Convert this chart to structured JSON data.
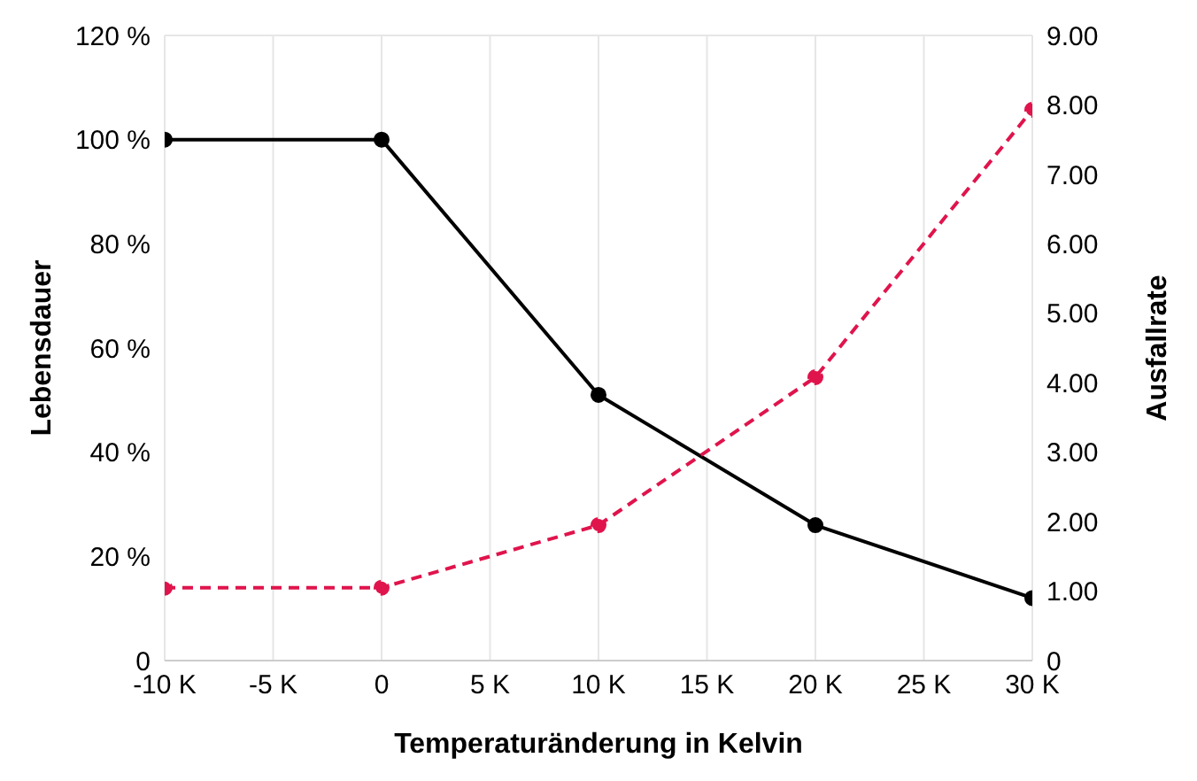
{
  "chart_data": {
    "type": "line",
    "xlabel": "Temperaturänderung in Kelvin",
    "ylabel": "Lebensdauer",
    "y2label": "Ausfallrate",
    "x": [
      -10,
      0,
      10,
      20,
      30
    ],
    "series": [
      {
        "color": "#000000",
        "values": [
          100,
          100,
          51,
          26,
          12
        ],
        "line_style": "solid"
      },
      {
        "color": "#e0144c",
        "values": [
          1.05,
          1.05,
          1.95,
          4.08,
          7.93
        ],
        "axis": "y2",
        "line_style": "dashed"
      }
    ],
    "xlim": [
      -10,
      30
    ],
    "xticks": [
      {
        "value": -10,
        "label": "-10 K"
      },
      {
        "value": -5,
        "label": "-5 K"
      },
      0,
      {
        "value": 5,
        "label": "5 K"
      },
      {
        "value": 10,
        "label": "10 K"
      },
      {
        "value": 15,
        "label": "15 K"
      },
      {
        "value": 20,
        "label": "20 K"
      },
      {
        "value": 25,
        "label": "25 K"
      },
      {
        "value": 30,
        "label": "30 K"
      }
    ],
    "ylim": [
      0,
      120
    ],
    "yticks": [
      0,
      {
        "value": 20,
        "label": "20 %"
      },
      {
        "value": 40,
        "label": "40 %"
      },
      {
        "value": 60,
        "label": "60 %"
      },
      {
        "value": 80,
        "label": "80 %"
      },
      {
        "value": 100,
        "label": "100 %"
      },
      {
        "value": 120,
        "label": "120 %"
      }
    ],
    "y2lim": [
      0,
      9
    ],
    "y2ticks": [
      0,
      {
        "value": 1,
        "label": "1.00"
      },
      {
        "value": 2,
        "label": "2.00"
      },
      {
        "value": 3,
        "label": "3.00"
      },
      {
        "value": 4,
        "label": "4.00"
      },
      {
        "value": 5,
        "label": "5.00"
      },
      {
        "value": 6,
        "label": "6.00"
      },
      {
        "value": 7,
        "label": "7.00"
      },
      {
        "value": 8,
        "label": "8.00"
      },
      {
        "value": 9,
        "label": "9.00"
      }
    ],
    "grid": true,
    "marker": "circle"
  }
}
